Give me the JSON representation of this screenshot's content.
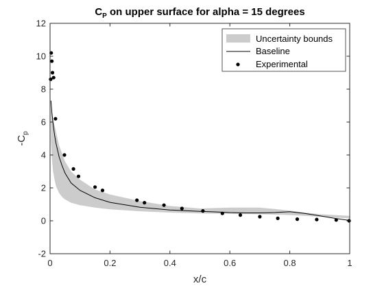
{
  "chart_data": {
    "type": "line",
    "title": {
      "base": "C",
      "sub": "P",
      "rest": " on upper surface for alpha = 15 degrees"
    },
    "xlabel": "x/c",
    "ylabel": {
      "base": "-C",
      "sub": "p"
    },
    "xlim": [
      0,
      1
    ],
    "ylim": [
      -2,
      12
    ],
    "xticks": [
      {
        "v": 0,
        "label": "0"
      },
      {
        "v": 0.2,
        "label": "0.2"
      },
      {
        "v": 0.4,
        "label": "0.4"
      },
      {
        "v": 0.6,
        "label": "0.6"
      },
      {
        "v": 0.8,
        "label": "0.8"
      },
      {
        "v": 1,
        "label": "1"
      }
    ],
    "yticks": [
      {
        "v": -2,
        "label": "-2"
      },
      {
        "v": 0,
        "label": "0"
      },
      {
        "v": 2,
        "label": "2"
      },
      {
        "v": 4,
        "label": "4"
      },
      {
        "v": 6,
        "label": "6"
      },
      {
        "v": 8,
        "label": "8"
      },
      {
        "v": 10,
        "label": "10"
      },
      {
        "v": 12,
        "label": "12"
      }
    ],
    "grid": false,
    "legend_position": "top-right",
    "colors": {
      "band": "#cccccc",
      "line": "#000000",
      "points": "#000000",
      "axis": "#262626"
    },
    "series": [
      {
        "name": "Uncertainty bounds",
        "kind": "band",
        "x": [
          0.003,
          0.006,
          0.01,
          0.015,
          0.02,
          0.03,
          0.04,
          0.05,
          0.07,
          0.1,
          0.15,
          0.2,
          0.3,
          0.4,
          0.5,
          0.6,
          0.7,
          0.75,
          0.8,
          0.85,
          0.9,
          0.95,
          1.0
        ],
        "lower": [
          4.8,
          3.8,
          3.0,
          2.5,
          2.1,
          1.7,
          1.45,
          1.3,
          1.1,
          0.95,
          0.8,
          0.7,
          0.58,
          0.5,
          0.45,
          0.42,
          0.4,
          0.38,
          0.35,
          0.3,
          0.25,
          0.2,
          0.15
        ],
        "upper": [
          6.9,
          6.5,
          6.2,
          5.8,
          5.4,
          4.6,
          4.1,
          3.6,
          3.0,
          2.5,
          1.9,
          1.6,
          1.2,
          0.9,
          0.75,
          0.8,
          0.8,
          0.72,
          0.62,
          0.5,
          0.4,
          0.35,
          0.3
        ]
      },
      {
        "name": "Baseline",
        "kind": "line",
        "x": [
          0.003,
          0.006,
          0.01,
          0.015,
          0.02,
          0.03,
          0.04,
          0.05,
          0.07,
          0.1,
          0.15,
          0.2,
          0.3,
          0.4,
          0.5,
          0.55,
          0.6,
          0.65,
          0.7,
          0.75,
          0.8,
          0.85,
          0.9,
          0.95,
          1.0
        ],
        "y": [
          7.3,
          6.6,
          5.9,
          5.2,
          4.7,
          3.9,
          3.35,
          2.9,
          2.3,
          1.85,
          1.4,
          1.12,
          0.82,
          0.66,
          0.57,
          0.54,
          0.5,
          0.48,
          0.48,
          0.5,
          0.55,
          0.45,
          0.3,
          0.15,
          0.02
        ]
      },
      {
        "name": "Experimental",
        "kind": "scatter",
        "x": [
          0.002,
          0.004,
          0.006,
          0.008,
          0.012,
          0.018,
          0.048,
          0.078,
          0.095,
          0.15,
          0.175,
          0.29,
          0.315,
          0.38,
          0.44,
          0.51,
          0.575,
          0.635,
          0.7,
          0.76,
          0.825,
          0.89,
          0.955,
          0.998
        ],
        "y": [
          8.6,
          10.2,
          9.7,
          9.0,
          8.7,
          6.2,
          4.0,
          3.15,
          2.7,
          2.05,
          1.85,
          1.25,
          1.1,
          0.95,
          0.75,
          0.6,
          0.45,
          0.35,
          0.25,
          0.15,
          0.1,
          0.08,
          0.05,
          0.0
        ]
      }
    ]
  }
}
